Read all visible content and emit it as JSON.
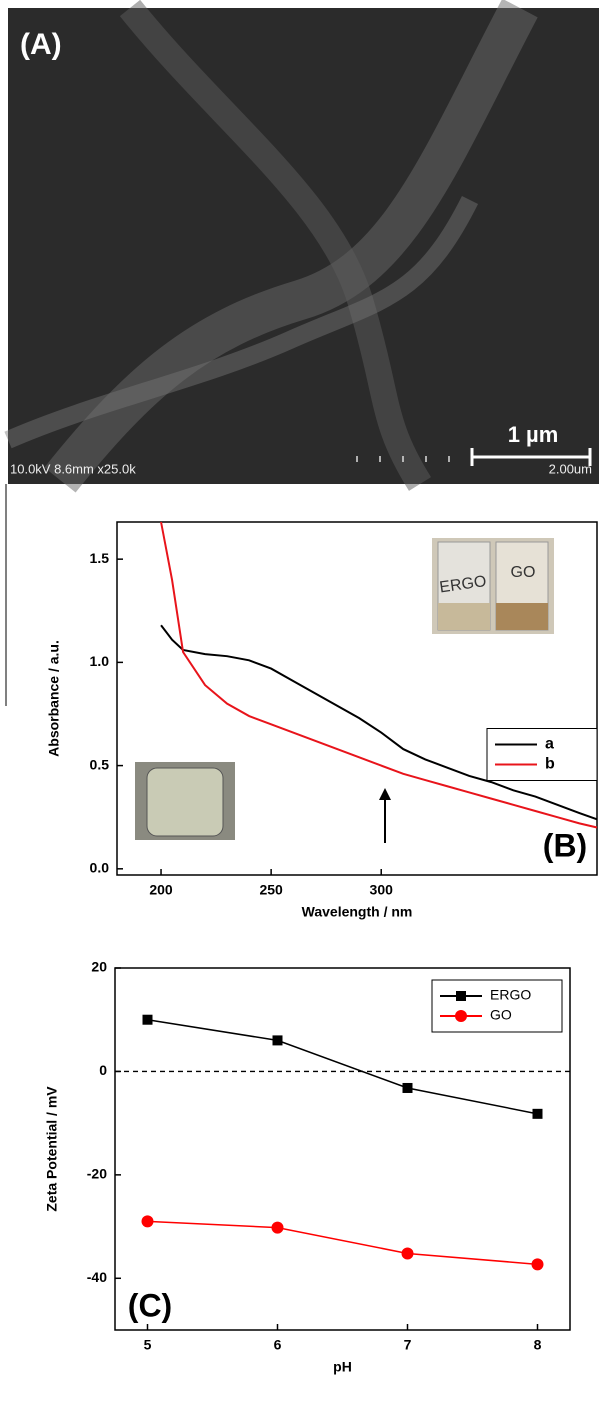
{
  "image_panel": {
    "panel_label": "(A)",
    "scale_bar": "1 µm",
    "info": "10.0kV 8.6mm x25.0k",
    "scale_text": "2.00um"
  },
  "chart_data": [
    {
      "type": "line",
      "panel_label": "(B)",
      "x_label": "Wavelength / nm",
      "y_label": "Absorbance / a.u.",
      "x": [
        200,
        205,
        210,
        220,
        230,
        240,
        250,
        260,
        270,
        280,
        290,
        300,
        310,
        320,
        330,
        340,
        350,
        360,
        370,
        380,
        390,
        398
      ],
      "series": [
        {
          "name": "a",
          "color": "#000000",
          "values": [
            1.18,
            1.11,
            1.06,
            1.04,
            1.03,
            1.01,
            0.97,
            0.91,
            0.85,
            0.79,
            0.73,
            0.66,
            0.58,
            0.53,
            0.49,
            0.45,
            0.42,
            0.38,
            0.35,
            0.31,
            0.27,
            0.24
          ]
        },
        {
          "name": "b",
          "color": "#e8141b",
          "values": [
            1.68,
            1.4,
            1.05,
            0.89,
            0.8,
            0.74,
            0.7,
            0.66,
            0.62,
            0.58,
            0.54,
            0.5,
            0.46,
            0.43,
            0.4,
            0.37,
            0.34,
            0.31,
            0.28,
            0.25,
            0.22,
            0.2
          ]
        }
      ],
      "xlim": [
        180,
        398
      ],
      "xticks": [
        200,
        250,
        300
      ],
      "ylim": [
        -0.03,
        1.68
      ],
      "yticks": [
        {
          "value": 0,
          "label": "0.0"
        },
        0.5,
        {
          "value": 1,
          "label": "1.0"
        },
        1.5
      ],
      "legend": "center right",
      "inset_labels": [
        "ERGO",
        "GO"
      ]
    },
    {
      "type": "line",
      "panel_label": "(C)",
      "x_label": "pH",
      "y_label": "Zeta Potential / mV",
      "x": [
        5,
        6,
        7,
        8
      ],
      "series": [
        {
          "name": "ERGO",
          "color": "#000000",
          "marker": "square",
          "values": [
            10,
            6,
            -3.2,
            -8.2
          ]
        },
        {
          "name": "GO",
          "color": "#ff0000",
          "marker": "circle",
          "values": [
            -29,
            -30.2,
            -35.2,
            -37.3
          ]
        }
      ],
      "xlim": [
        4.75,
        8.25
      ],
      "xticks": [
        5,
        6,
        7,
        8
      ],
      "ylim": [
        -50,
        20
      ],
      "yticks": [
        20,
        0,
        -20,
        -40
      ],
      "reference_line": 0,
      "legend": "upper right"
    }
  ]
}
